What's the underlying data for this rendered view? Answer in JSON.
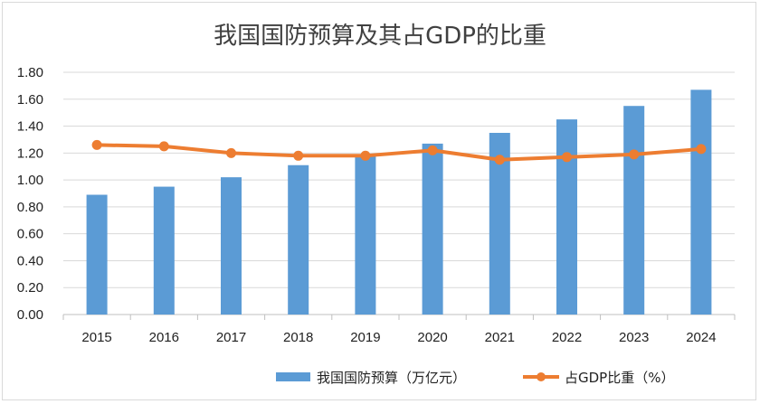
{
  "chart_data": {
    "type": "bar+line",
    "title": "我国国防预算及其占GDP的比重",
    "categories": [
      "2015",
      "2016",
      "2017",
      "2018",
      "2019",
      "2020",
      "2021",
      "2022",
      "2023",
      "2024"
    ],
    "series": [
      {
        "name": "我国国防预算（万亿元）",
        "type": "bar",
        "color": "#5b9bd5",
        "values": [
          0.89,
          0.95,
          1.02,
          1.11,
          1.19,
          1.27,
          1.35,
          1.45,
          1.55,
          1.67
        ]
      },
      {
        "name": "占GDP比重（%）",
        "type": "line",
        "color": "#ed7d31",
        "values": [
          1.26,
          1.25,
          1.2,
          1.18,
          1.18,
          1.22,
          1.15,
          1.17,
          1.19,
          1.23
        ]
      }
    ],
    "y_ticks": [
      "0.00",
      "0.20",
      "0.40",
      "0.60",
      "0.80",
      "1.00",
      "1.20",
      "1.40",
      "1.60",
      "1.80"
    ],
    "ylim": [
      0,
      1.8
    ],
    "grid": true,
    "legend": "bottom"
  }
}
